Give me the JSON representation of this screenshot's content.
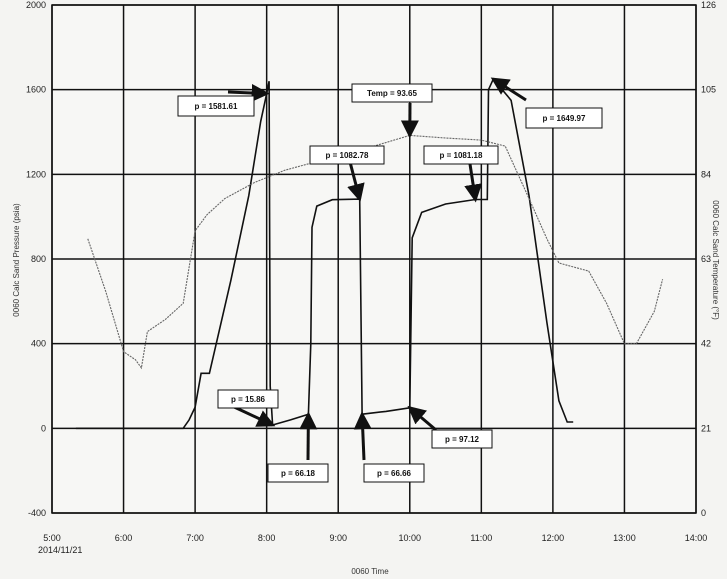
{
  "chart_data": {
    "type": "line",
    "xlabel": "0060 Time",
    "x_date_label": "2014/11/21",
    "ylabel_left": "0060 Calc Sand Pressure (psia)",
    "ylabel_right": "0060 Calc Sand Temperature (°F)",
    "x_ticks": [
      "5:00",
      "6:00",
      "7:00",
      "8:00",
      "9:00",
      "10:00",
      "11:00",
      "12:00",
      "13:00",
      "14:00"
    ],
    "y_left_ticks": [
      "2000",
      "1600",
      "1200",
      "800",
      "400",
      "0",
      "-400"
    ],
    "y_right_ticks": [
      "126",
      "105",
      "84",
      "63",
      "42",
      "21",
      "0"
    ],
    "xlim": [
      "5:00",
      "14:00"
    ],
    "ylim_left": [
      -400,
      2000
    ],
    "ylim_right": [
      0,
      126
    ],
    "grid": true,
    "series": [
      {
        "axis": "left",
        "color": "#111111",
        "points": [
          [
            "5:20",
            0
          ],
          [
            "6:50",
            0
          ],
          [
            "6:55",
            40
          ],
          [
            "7:00",
            100
          ],
          [
            "7:05",
            260
          ],
          [
            "7:12",
            260
          ],
          [
            "7:30",
            700
          ],
          [
            "7:45",
            1100
          ],
          [
            "7:55",
            1450
          ],
          [
            "8:00",
            1581.61
          ],
          [
            "8:02",
            1640
          ],
          [
            "8:03",
            200
          ],
          [
            "8:05",
            15.86
          ],
          [
            "8:20",
            40
          ],
          [
            "8:35",
            66.18
          ],
          [
            "8:37",
            400
          ],
          [
            "8:38",
            950
          ],
          [
            "8:42",
            1050
          ],
          [
            "8:55",
            1080
          ],
          [
            "9:18",
            1082.78
          ],
          [
            "9:20",
            66.66
          ],
          [
            "9:40",
            80
          ],
          [
            "10:00",
            97.12
          ],
          [
            "10:02",
            900
          ],
          [
            "10:10",
            1020
          ],
          [
            "10:30",
            1060
          ],
          [
            "10:55",
            1081.18
          ],
          [
            "11:05",
            1081
          ],
          [
            "11:06",
            1600
          ],
          [
            "11:10",
            1649.97
          ],
          [
            "11:25",
            1550
          ],
          [
            "11:40",
            1100
          ],
          [
            "11:55",
            500
          ],
          [
            "12:05",
            130
          ],
          [
            "12:12",
            30
          ],
          [
            "12:17",
            30
          ]
        ]
      },
      {
        "axis": "right",
        "color": "#666666",
        "points": [
          [
            "5:30",
            68
          ],
          [
            "5:45",
            55
          ],
          [
            "6:00",
            40
          ],
          [
            "6:10",
            38
          ],
          [
            "6:15",
            36
          ],
          [
            "6:20",
            45
          ],
          [
            "6:35",
            48
          ],
          [
            "6:50",
            52
          ],
          [
            "7:00",
            70
          ],
          [
            "7:10",
            74
          ],
          [
            "7:25",
            78
          ],
          [
            "7:50",
            82
          ],
          [
            "8:15",
            85
          ],
          [
            "8:40",
            87
          ],
          [
            "9:00",
            89
          ],
          [
            "9:30",
            91
          ],
          [
            "10:00",
            93.65
          ],
          [
            "10:30",
            93
          ],
          [
            "11:00",
            92.5
          ],
          [
            "11:20",
            91
          ],
          [
            "11:40",
            78
          ],
          [
            "11:55",
            68
          ],
          [
            "12:05",
            62
          ],
          [
            "12:30",
            60
          ],
          [
            "12:45",
            52
          ],
          [
            "13:00",
            42
          ],
          [
            "13:10",
            42
          ],
          [
            "13:25",
            50
          ],
          [
            "13:32",
            58
          ]
        ]
      }
    ],
    "annotations": [
      {
        "text": "p = 1581.61",
        "axis": "left",
        "x": "8:00",
        "y": 1581.61
      },
      {
        "text": "p = 15.86",
        "axis": "left",
        "x": "8:05",
        "y": 15.86
      },
      {
        "text": "p = 66.18",
        "axis": "left",
        "x": "8:35",
        "y": 66.18
      },
      {
        "text": "p = 1082.78",
        "axis": "left",
        "x": "9:18",
        "y": 1082.78
      },
      {
        "text": "p = 66.66",
        "axis": "left",
        "x": "9:20",
        "y": 66.66
      },
      {
        "text": "Temp = 93.65",
        "axis": "right",
        "x": "10:00",
        "y": 93.65
      },
      {
        "text": "p = 97.12",
        "axis": "left",
        "x": "10:00",
        "y": 97.12
      },
      {
        "text": "p = 1081.18",
        "axis": "left",
        "x": "10:55",
        "y": 1081.18
      },
      {
        "text": "p = 1649.97",
        "axis": "left",
        "x": "11:10",
        "y": 1649.97
      }
    ]
  }
}
